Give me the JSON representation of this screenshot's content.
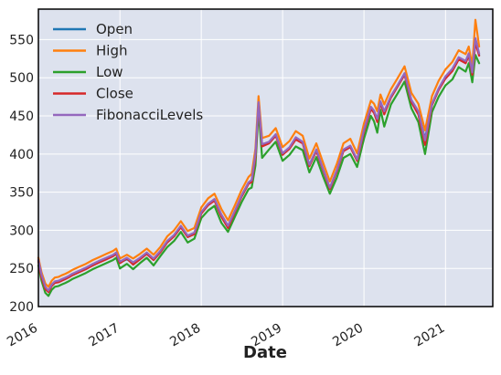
{
  "chart_data": {
    "type": "line",
    "title": "",
    "xlabel": "Date",
    "ylabel": "",
    "xlim": [
      "2016-01-01",
      "2021-08-01"
    ],
    "ylim": [
      200,
      590
    ],
    "grid": true,
    "legend_position": "top-left",
    "x_ticks": [
      "2016",
      "2017",
      "2018",
      "2019",
      "2020",
      "2021"
    ],
    "y_ticks": [
      200,
      250,
      300,
      350,
      400,
      450,
      500,
      550
    ],
    "x": [
      "2016-01-01",
      "2016-01-15",
      "2016-02-01",
      "2016-02-15",
      "2016-03-01",
      "2016-03-15",
      "2016-04-01",
      "2016-04-15",
      "2016-05-01",
      "2016-05-15",
      "2016-06-01",
      "2016-07-01",
      "2016-08-01",
      "2016-09-01",
      "2016-10-01",
      "2016-11-01",
      "2016-12-01",
      "2016-12-15",
      "2017-01-01",
      "2017-02-01",
      "2017-03-01",
      "2017-04-01",
      "2017-05-01",
      "2017-06-01",
      "2017-07-01",
      "2017-08-01",
      "2017-09-01",
      "2017-10-01",
      "2017-11-01",
      "2017-12-01",
      "2018-01-01",
      "2018-02-01",
      "2018-03-01",
      "2018-04-01",
      "2018-05-01",
      "2018-06-01",
      "2018-07-01",
      "2018-08-01",
      "2018-08-15",
      "2018-09-01",
      "2018-09-15",
      "2018-10-01",
      "2018-11-01",
      "2018-12-01",
      "2019-01-01",
      "2019-02-01",
      "2019-03-01",
      "2019-04-01",
      "2019-05-01",
      "2019-06-01",
      "2019-07-01",
      "2019-08-01",
      "2019-09-01",
      "2019-10-01",
      "2019-11-01",
      "2019-12-01",
      "2020-01-01",
      "2020-02-01",
      "2020-02-15",
      "2020-03-01",
      "2020-03-15",
      "2020-04-01",
      "2020-05-01",
      "2020-06-01",
      "2020-07-01",
      "2020-08-01",
      "2020-09-01",
      "2020-10-01",
      "2020-11-01",
      "2020-12-01",
      "2021-01-01",
      "2021-02-01",
      "2021-03-01",
      "2021-04-01",
      "2021-04-15",
      "2021-05-01",
      "2021-05-15",
      "2021-06-01"
    ],
    "series": [
      {
        "name": "Open",
        "color": "#1f77b4",
        "values": [
          260,
          240,
          225,
          220,
          228,
          232,
          233,
          235,
          237,
          239,
          242,
          246,
          250,
          255,
          259,
          263,
          267,
          270,
          258,
          262,
          257,
          263,
          270,
          262,
          272,
          285,
          293,
          305,
          292,
          296,
          323,
          334,
          340,
          320,
          305,
          325,
          345,
          362,
          365,
          398,
          467,
          412,
          415,
          425,
          400,
          408,
          420,
          415,
          385,
          405,
          380,
          355,
          378,
          405,
          410,
          392,
          430,
          460,
          455,
          445,
          468,
          455,
          475,
          490,
          505,
          470,
          455,
          420,
          465,
          485,
          500,
          510,
          525,
          520,
          530,
          505,
          548,
          530
        ]
      },
      {
        "name": "High",
        "color": "#ff7f0e",
        "values": [
          264,
          245,
          230,
          226,
          234,
          238,
          239,
          241,
          243,
          245,
          248,
          252,
          256,
          261,
          265,
          269,
          273,
          276,
          263,
          268,
          263,
          269,
          276,
          268,
          278,
          292,
          300,
          312,
          299,
          303,
          330,
          342,
          348,
          328,
          313,
          333,
          353,
          370,
          374,
          407,
          476,
          421,
          424,
          434,
          409,
          417,
          430,
          424,
          394,
          414,
          389,
          364,
          387,
          414,
          420,
          401,
          440,
          470,
          466,
          456,
          478,
          465,
          485,
          500,
          515,
          480,
          466,
          431,
          476,
          496,
          511,
          521,
          536,
          531,
          541,
          516,
          576,
          541
        ]
      },
      {
        "name": "Low",
        "color": "#2ca02c",
        "values": [
          254,
          234,
          218,
          214,
          222,
          226,
          227,
          229,
          231,
          233,
          236,
          240,
          244,
          249,
          253,
          257,
          261,
          264,
          250,
          256,
          249,
          257,
          264,
          254,
          266,
          278,
          286,
          298,
          284,
          289,
          316,
          326,
          332,
          310,
          298,
          318,
          337,
          354,
          356,
          385,
          458,
          395,
          406,
          416,
          391,
          399,
          410,
          405,
          376,
          396,
          371,
          348,
          369,
          395,
          400,
          383,
          420,
          450,
          443,
          428,
          458,
          436,
          465,
          480,
          495,
          460,
          442,
          400,
          455,
          475,
          490,
          498,
          514,
          508,
          519,
          494,
          530,
          519
        ]
      },
      {
        "name": "Close",
        "color": "#d62728",
        "values": [
          259,
          238,
          223,
          219,
          227,
          231,
          232,
          234,
          236,
          238,
          241,
          245,
          249,
          254,
          258,
          262,
          266,
          269,
          257,
          263,
          255,
          262,
          269,
          261,
          271,
          284,
          292,
          304,
          291,
          295,
          322,
          333,
          339,
          318,
          303,
          324,
          344,
          361,
          363,
          395,
          466,
          410,
          414,
          424,
          399,
          407,
          419,
          414,
          384,
          404,
          379,
          354,
          377,
          404,
          409,
          391,
          429,
          459,
          454,
          442,
          467,
          452,
          474,
          489,
          504,
          468,
          452,
          412,
          464,
          484,
          499,
          509,
          524,
          519,
          529,
          504,
          546,
          529
        ]
      },
      {
        "name": "FibonacciLevels",
        "color": "#9467bd",
        "values": [
          261,
          242,
          226,
          221,
          229,
          233,
          234,
          236,
          238,
          240,
          243,
          247,
          251,
          256,
          260,
          264,
          268,
          271,
          259,
          264,
          258,
          264,
          271,
          263,
          273,
          286,
          294,
          306,
          293,
          297,
          324,
          335,
          341,
          321,
          306,
          326,
          346,
          363,
          366,
          400,
          468,
          413,
          416,
          426,
          401,
          409,
          422,
          416,
          386,
          406,
          381,
          356,
          379,
          406,
          411,
          393,
          432,
          462,
          457,
          446,
          469,
          456,
          476,
          491,
          506,
          471,
          456,
          418,
          466,
          486,
          502,
          512,
          527,
          522,
          532,
          507,
          552,
          532
        ]
      }
    ]
  }
}
